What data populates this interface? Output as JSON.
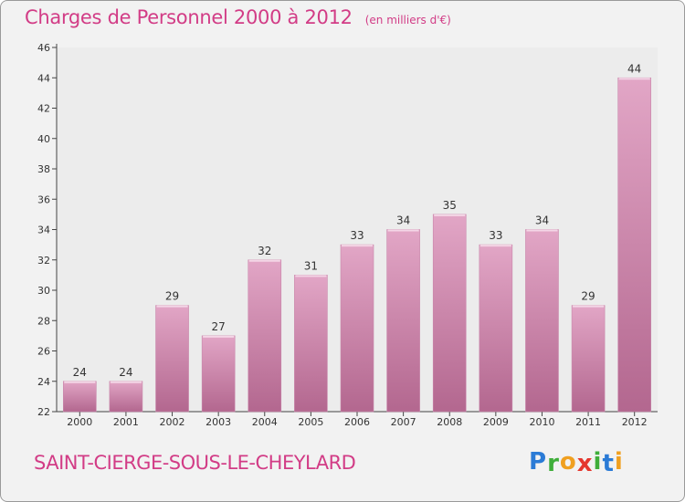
{
  "header": {
    "title": "Charges de Personnel 2000 à 2012",
    "subtitle": "(en milliers d'€)"
  },
  "footer": {
    "town": "SAINT-CIERGE-SOUS-LE-CHEYLARD",
    "logo_letters": [
      "P",
      "r",
      "o",
      "x",
      "i",
      "t",
      "i"
    ],
    "logo_colors": [
      "#2b7bd6",
      "#3fae3a",
      "#f0a020",
      "#e5372e",
      "#3fae3a",
      "#2b7bd6",
      "#f0a020"
    ]
  },
  "colors": {
    "bar_top": "#e2a6c6",
    "bar_bottom": "#b3678f",
    "title": "#d23c86",
    "plot_bg": "#ececec"
  },
  "chart_data": {
    "type": "bar",
    "categories": [
      "2000",
      "2001",
      "2002",
      "2003",
      "2004",
      "2005",
      "2006",
      "2007",
      "2008",
      "2009",
      "2010",
      "2011",
      "2012"
    ],
    "values": [
      24,
      24,
      29,
      27,
      32,
      31,
      33,
      34,
      35,
      33,
      34,
      29,
      44
    ],
    "title": "Charges de Personnel 2000 à 2012",
    "subtitle": "(en milliers d'€)",
    "xlabel": "",
    "ylabel": "",
    "ylim": [
      22,
      46
    ],
    "yticks": [
      22,
      24,
      26,
      28,
      30,
      32,
      34,
      36,
      38,
      40,
      42,
      44,
      46
    ],
    "grid": false,
    "legend": "none"
  }
}
